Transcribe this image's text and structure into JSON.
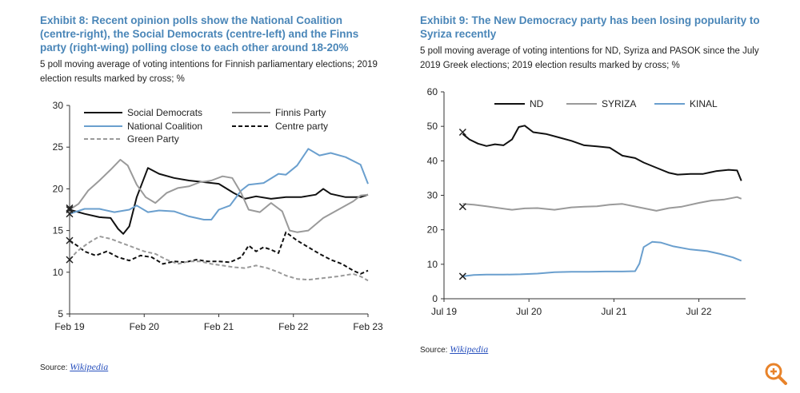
{
  "left": {
    "title": "Exhibit 8: Recent opinion polls show the National Coalition (centre-right), the Social Democrats (centre-left) and the Finns party (right-wing) polling close to each other around 18-20%",
    "subtitle": "5 poll moving average of voting intentions for Finnish parliamentary elections; 2019 election results marked by cross; %",
    "source_label": "Source:",
    "source_link": "Wikipedia"
  },
  "right": {
    "title": "Exhibit 9: The New Democracy party has been losing popularity to Syriza recently",
    "subtitle": "5 poll moving average of voting intentions for ND, Syriza and PASOK since the July 2019 Greek elections; 2019 election results marked by cross; %",
    "source_label": "Source:",
    "source_link": "Wikipedia"
  },
  "zoom_icon": "zoom-in-icon",
  "colors": {
    "title": "#4a86b8",
    "accent": "#e8832a"
  },
  "chart_data": [
    {
      "type": "line",
      "ylim": [
        5,
        30
      ],
      "yticks": [
        5,
        10,
        15,
        20,
        25,
        30
      ],
      "xlim": [
        2019.1,
        2023.1
      ],
      "xticks": [
        {
          "label": "Feb 19",
          "x": 2019.1
        },
        {
          "label": "Feb 20",
          "x": 2020.1
        },
        {
          "label": "Feb 21",
          "x": 2021.1
        },
        {
          "label": "Feb 22",
          "x": 2022.1
        },
        {
          "label": "Feb 23",
          "x": 2023.1
        }
      ],
      "legend": "top-left, inside",
      "series": [
        {
          "name": "Social Democrats",
          "color": "#111111",
          "dash": "solid",
          "points": [
            [
              2019.1,
              17.5
            ],
            [
              2019.3,
              17.0
            ],
            [
              2019.5,
              16.6
            ],
            [
              2019.65,
              16.5
            ],
            [
              2019.75,
              15.2
            ],
            [
              2019.82,
              14.6
            ],
            [
              2019.9,
              15.5
            ],
            [
              2020.0,
              19.0
            ],
            [
              2020.15,
              22.5
            ],
            [
              2020.3,
              21.8
            ],
            [
              2020.5,
              21.3
            ],
            [
              2020.7,
              21.0
            ],
            [
              2020.9,
              20.8
            ],
            [
              2021.1,
              20.6
            ],
            [
              2021.3,
              19.5
            ],
            [
              2021.45,
              18.8
            ],
            [
              2021.6,
              19.1
            ],
            [
              2021.8,
              18.8
            ],
            [
              2022.0,
              19.0
            ],
            [
              2022.2,
              19.0
            ],
            [
              2022.4,
              19.3
            ],
            [
              2022.5,
              20.0
            ],
            [
              2022.6,
              19.4
            ],
            [
              2022.8,
              19.0
            ],
            [
              2023.0,
              19.0
            ],
            [
              2023.1,
              19.3
            ]
          ]
        },
        {
          "name": "National Coalition",
          "color": "#6a9fce",
          "dash": "solid",
          "points": [
            [
              2019.1,
              17.0
            ],
            [
              2019.3,
              17.6
            ],
            [
              2019.5,
              17.6
            ],
            [
              2019.7,
              17.2
            ],
            [
              2019.9,
              17.5
            ],
            [
              2020.0,
              18.0
            ],
            [
              2020.15,
              17.2
            ],
            [
              2020.3,
              17.4
            ],
            [
              2020.5,
              17.3
            ],
            [
              2020.7,
              16.7
            ],
            [
              2020.9,
              16.3
            ],
            [
              2021.0,
              16.3
            ],
            [
              2021.1,
              17.5
            ],
            [
              2021.25,
              18.0
            ],
            [
              2021.4,
              19.8
            ],
            [
              2021.5,
              20.5
            ],
            [
              2021.7,
              20.7
            ],
            [
              2021.9,
              21.8
            ],
            [
              2022.0,
              21.7
            ],
            [
              2022.15,
              22.8
            ],
            [
              2022.3,
              24.8
            ],
            [
              2022.45,
              24.0
            ],
            [
              2022.6,
              24.3
            ],
            [
              2022.8,
              23.8
            ],
            [
              2023.0,
              22.9
            ],
            [
              2023.1,
              20.6
            ]
          ]
        },
        {
          "name": "Finnis Party",
          "color": "#9a9a9a",
          "dash": "solid",
          "points": [
            [
              2019.1,
              17.5
            ],
            [
              2019.22,
              18.2
            ],
            [
              2019.35,
              19.8
            ],
            [
              2019.5,
              21.0
            ],
            [
              2019.65,
              22.3
            ],
            [
              2019.78,
              23.5
            ],
            [
              2019.88,
              22.8
            ],
            [
              2020.0,
              20.5
            ],
            [
              2020.12,
              19.0
            ],
            [
              2020.25,
              18.3
            ],
            [
              2020.4,
              19.5
            ],
            [
              2020.55,
              20.1
            ],
            [
              2020.7,
              20.3
            ],
            [
              2020.85,
              20.8
            ],
            [
              2021.0,
              21.0
            ],
            [
              2021.15,
              21.5
            ],
            [
              2021.28,
              21.3
            ],
            [
              2021.4,
              19.5
            ],
            [
              2021.5,
              17.5
            ],
            [
              2021.65,
              17.2
            ],
            [
              2021.8,
              18.3
            ],
            [
              2021.95,
              17.3
            ],
            [
              2022.05,
              15.0
            ],
            [
              2022.15,
              14.8
            ],
            [
              2022.3,
              15.0
            ],
            [
              2022.5,
              16.5
            ],
            [
              2022.7,
              17.5
            ],
            [
              2022.9,
              18.5
            ],
            [
              2023.0,
              19.2
            ],
            [
              2023.1,
              19.3
            ]
          ]
        },
        {
          "name": "Centre party",
          "color": "#111111",
          "dash": "dashed",
          "points": [
            [
              2019.1,
              13.8
            ],
            [
              2019.2,
              13.2
            ],
            [
              2019.3,
              12.5
            ],
            [
              2019.45,
              12.0
            ],
            [
              2019.6,
              12.5
            ],
            [
              2019.75,
              11.8
            ],
            [
              2019.9,
              11.4
            ],
            [
              2020.05,
              12.0
            ],
            [
              2020.2,
              11.8
            ],
            [
              2020.35,
              11.0
            ],
            [
              2020.5,
              11.3
            ],
            [
              2020.65,
              11.2
            ],
            [
              2020.8,
              11.5
            ],
            [
              2020.95,
              11.3
            ],
            [
              2021.1,
              11.3
            ],
            [
              2021.25,
              11.2
            ],
            [
              2021.4,
              11.8
            ],
            [
              2021.5,
              13.2
            ],
            [
              2021.6,
              12.5
            ],
            [
              2021.7,
              13.0
            ],
            [
              2021.8,
              12.7
            ],
            [
              2021.9,
              12.3
            ],
            [
              2022.0,
              14.8
            ],
            [
              2022.15,
              13.8
            ],
            [
              2022.3,
              13.0
            ],
            [
              2022.45,
              12.2
            ],
            [
              2022.6,
              11.5
            ],
            [
              2022.75,
              11.0
            ],
            [
              2022.9,
              10.2
            ],
            [
              2023.0,
              9.8
            ],
            [
              2023.1,
              10.2
            ]
          ]
        },
        {
          "name": "Green Party",
          "color": "#9a9a9a",
          "dash": "dashed",
          "points": [
            [
              2019.1,
              11.5
            ],
            [
              2019.2,
              12.5
            ],
            [
              2019.35,
              13.5
            ],
            [
              2019.5,
              14.3
            ],
            [
              2019.65,
              14.0
            ],
            [
              2019.8,
              13.5
            ],
            [
              2019.95,
              13.0
            ],
            [
              2020.1,
              12.5
            ],
            [
              2020.25,
              12.2
            ],
            [
              2020.4,
              11.5
            ],
            [
              2020.55,
              11.0
            ],
            [
              2020.7,
              11.3
            ],
            [
              2020.85,
              11.3
            ],
            [
              2021.0,
              11.0
            ],
            [
              2021.15,
              10.8
            ],
            [
              2021.3,
              10.6
            ],
            [
              2021.45,
              10.5
            ],
            [
              2021.6,
              10.8
            ],
            [
              2021.75,
              10.5
            ],
            [
              2021.9,
              10.0
            ],
            [
              2022.0,
              9.6
            ],
            [
              2022.15,
              9.2
            ],
            [
              2022.3,
              9.1
            ],
            [
              2022.5,
              9.3
            ],
            [
              2022.7,
              9.5
            ],
            [
              2022.9,
              9.8
            ],
            [
              2023.0,
              9.5
            ],
            [
              2023.1,
              9.0
            ]
          ]
        }
      ],
      "election_2019": [
        17.7,
        17.0,
        17.5,
        13.8,
        11.5
      ]
    },
    {
      "type": "line",
      "ylim": [
        0,
        60
      ],
      "yticks": [
        0,
        10,
        20,
        30,
        40,
        50,
        60
      ],
      "xlim": [
        2019.5,
        2023.05
      ],
      "xticks": [
        {
          "label": "Jul 19",
          "x": 2019.5
        },
        {
          "label": "Jul 20",
          "x": 2020.5
        },
        {
          "label": "Jul 21",
          "x": 2021.5
        },
        {
          "label": "Jul 22",
          "x": 2022.5
        }
      ],
      "legend": "top, inside",
      "series": [
        {
          "name": "ND",
          "color": "#111111",
          "dash": "solid",
          "points": [
            [
              2019.72,
              47.8
            ],
            [
              2019.8,
              46.2
            ],
            [
              2019.9,
              45.0
            ],
            [
              2020.0,
              44.3
            ],
            [
              2020.1,
              44.8
            ],
            [
              2020.2,
              44.5
            ],
            [
              2020.3,
              46.2
            ],
            [
              2020.38,
              49.8
            ],
            [
              2020.45,
              50.2
            ],
            [
              2020.55,
              48.3
            ],
            [
              2020.7,
              47.8
            ],
            [
              2020.85,
              46.8
            ],
            [
              2021.0,
              45.8
            ],
            [
              2021.15,
              44.5
            ],
            [
              2021.3,
              44.2
            ],
            [
              2021.45,
              43.8
            ],
            [
              2021.6,
              41.5
            ],
            [
              2021.75,
              40.8
            ],
            [
              2021.85,
              39.5
            ],
            [
              2022.0,
              38.0
            ],
            [
              2022.15,
              36.5
            ],
            [
              2022.25,
              36.0
            ],
            [
              2022.4,
              36.2
            ],
            [
              2022.55,
              36.2
            ],
            [
              2022.7,
              37.0
            ],
            [
              2022.85,
              37.4
            ],
            [
              2022.95,
              37.2
            ],
            [
              2023.0,
              34.2
            ]
          ]
        },
        {
          "name": "SYRIZA",
          "color": "#9a9a9a",
          "dash": "solid",
          "points": [
            [
              2019.72,
              27.5
            ],
            [
              2019.85,
              27.3
            ],
            [
              2020.0,
              26.8
            ],
            [
              2020.15,
              26.3
            ],
            [
              2020.3,
              25.8
            ],
            [
              2020.45,
              26.2
            ],
            [
              2020.6,
              26.3
            ],
            [
              2020.8,
              25.8
            ],
            [
              2021.0,
              26.5
            ],
            [
              2021.15,
              26.7
            ],
            [
              2021.3,
              26.8
            ],
            [
              2021.45,
              27.3
            ],
            [
              2021.6,
              27.5
            ],
            [
              2021.8,
              26.5
            ],
            [
              2022.0,
              25.5
            ],
            [
              2022.15,
              26.3
            ],
            [
              2022.3,
              26.7
            ],
            [
              2022.5,
              27.8
            ],
            [
              2022.65,
              28.5
            ],
            [
              2022.8,
              28.8
            ],
            [
              2022.95,
              29.5
            ],
            [
              2023.0,
              29.0
            ]
          ]
        },
        {
          "name": "KINAL",
          "color": "#6a9fce",
          "dash": "solid",
          "points": [
            [
              2019.72,
              6.5
            ],
            [
              2019.85,
              6.9
            ],
            [
              2020.0,
              7.0
            ],
            [
              2020.2,
              7.0
            ],
            [
              2020.4,
              7.1
            ],
            [
              2020.6,
              7.3
            ],
            [
              2020.8,
              7.7
            ],
            [
              2021.0,
              7.8
            ],
            [
              2021.2,
              7.8
            ],
            [
              2021.4,
              7.9
            ],
            [
              2021.6,
              7.9
            ],
            [
              2021.75,
              8.0
            ],
            [
              2021.8,
              10.2
            ],
            [
              2021.85,
              15.0
            ],
            [
              2021.95,
              16.5
            ],
            [
              2022.05,
              16.3
            ],
            [
              2022.2,
              15.2
            ],
            [
              2022.4,
              14.3
            ],
            [
              2022.6,
              13.8
            ],
            [
              2022.75,
              13.0
            ],
            [
              2022.9,
              12.0
            ],
            [
              2023.0,
              11.0
            ]
          ]
        }
      ],
      "election_2019": [
        48.3,
        26.7,
        6.5
      ]
    }
  ]
}
